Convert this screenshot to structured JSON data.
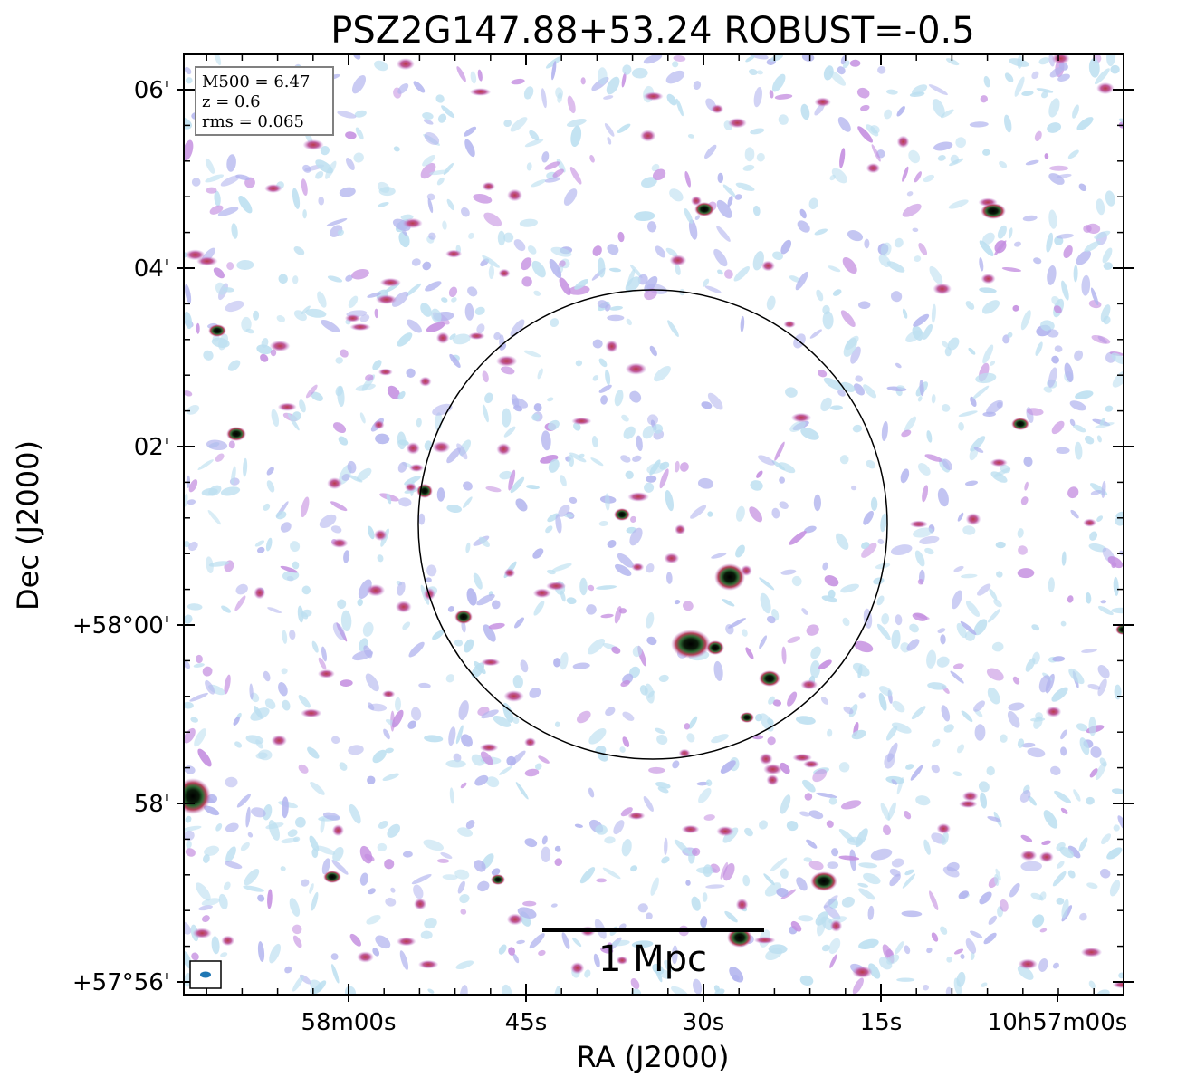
{
  "chart_data": {
    "type": "heatmap",
    "title": "PSZ2G147.88+53.24 ROBUST=-0.5",
    "xlabel": "RA (J2000)",
    "ylabel": "Dec (J2000)",
    "x_ticks": [
      "58m00s",
      "45s",
      "30s",
      "15s",
      "10h57m00s"
    ],
    "y_ticks": [
      "+57°56'",
      "58'",
      "+58°00'",
      "02'",
      "04'",
      "06'"
    ],
    "info_box": [
      "M500 = 6.47",
      "z = 0.6",
      "rms = 0.065"
    ],
    "scalebar_label": "1 Mpc",
    "colormap": [
      "#ffffff",
      "#bcdff0",
      "#b2b4ee",
      "#c48ee0",
      "#c05a9a",
      "#b83a4a",
      "#3e6f2e",
      "#000000"
    ],
    "circle_color": "#000000",
    "beam_color": "#1f77b4"
  }
}
